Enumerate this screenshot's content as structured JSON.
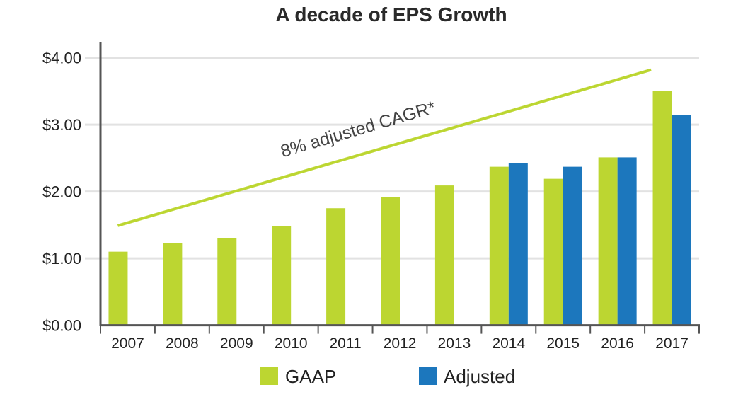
{
  "chart_data": {
    "type": "bar",
    "title": "A decade of EPS Growth",
    "xlabel": "",
    "ylabel": "",
    "categories": [
      "2007",
      "2008",
      "2009",
      "2010",
      "2011",
      "2012",
      "2013",
      "2014",
      "2015",
      "2016",
      "2017"
    ],
    "series": [
      {
        "name": "GAAP",
        "color": "#bcd631",
        "values": [
          1.1,
          1.23,
          1.3,
          1.48,
          1.75,
          1.92,
          2.09,
          2.37,
          2.19,
          2.51,
          3.5
        ]
      },
      {
        "name": "Adjusted",
        "color": "#1c77bd",
        "values": [
          null,
          null,
          null,
          null,
          null,
          null,
          null,
          2.42,
          2.37,
          2.51,
          3.14
        ]
      }
    ],
    "ylim": [
      0,
      4
    ],
    "yticks": [
      0,
      1,
      2,
      3,
      4
    ],
    "ytick_labels": [
      "$0.00",
      "$1.00",
      "$2.00",
      "$3.00",
      "$4.00"
    ],
    "grid": true,
    "legend_position": "bottom",
    "trend_line": {
      "label": "8% adjusted CAGR*",
      "color": "#bcd631",
      "start": [
        2007,
        1.49
      ],
      "end": [
        2016.8,
        3.82
      ]
    }
  }
}
